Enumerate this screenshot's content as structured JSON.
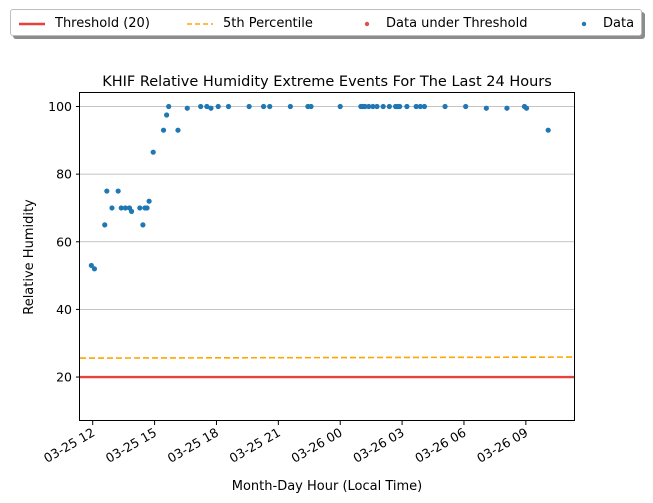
{
  "chart_data": {
    "type": "scatter",
    "title": "KHIF Relative Humidity Extreme Events For The Last 24 Hours",
    "xlabel": "Month-Day Hour (Local Time)",
    "ylabel": "Relative Humidity",
    "ylim": [
      7,
      104
    ],
    "xlim": [
      "03-25 11:23",
      "03-26 11:23"
    ],
    "grid": "y",
    "legend_placement": "top, outside",
    "x_ticks": [
      "03-25 12",
      "03-25 15",
      "03-25 18",
      "03-25 21",
      "03-26 00",
      "03-26 03",
      "03-26 06",
      "03-26 09"
    ],
    "x_tick_times": [
      "03-25 12:00",
      "03-25 15:00",
      "03-25 18:00",
      "03-25 21:00",
      "03-26 00:00",
      "03-26 03:00",
      "03-26 06:00",
      "03-26 09:00"
    ],
    "y_ticks": [
      20,
      40,
      60,
      80,
      100
    ],
    "threshold": {
      "label": "Threshold (20)",
      "value": 20,
      "color": "#e8403c"
    },
    "percentile": {
      "label": "5th Percentile",
      "start": 25.6,
      "end": 25.9,
      "color": "#ffa500"
    },
    "series": [
      {
        "name": "Data under Threshold",
        "color": "#d9544f",
        "points": []
      },
      {
        "name": "Data",
        "color": "#1f77b4",
        "points": [
          {
            "x": "03-25 11:56",
            "y": 53
          },
          {
            "x": "03-25 12:05",
            "y": 52
          },
          {
            "x": "03-25 12:35",
            "y": 65
          },
          {
            "x": "03-25 12:41",
            "y": 75
          },
          {
            "x": "03-25 12:56",
            "y": 70
          },
          {
            "x": "03-25 13:14",
            "y": 75
          },
          {
            "x": "03-25 13:23",
            "y": 70
          },
          {
            "x": "03-25 13:35",
            "y": 70
          },
          {
            "x": "03-25 13:47",
            "y": 70
          },
          {
            "x": "03-25 13:53",
            "y": 69
          },
          {
            "x": "03-25 14:17",
            "y": 70
          },
          {
            "x": "03-25 14:26",
            "y": 65
          },
          {
            "x": "03-25 14:32",
            "y": 70
          },
          {
            "x": "03-25 14:38",
            "y": 70
          },
          {
            "x": "03-25 14:44",
            "y": 72
          },
          {
            "x": "03-25 14:56",
            "y": 86.5
          },
          {
            "x": "03-25 15:26",
            "y": 93
          },
          {
            "x": "03-25 15:35",
            "y": 97.5
          },
          {
            "x": "03-25 15:41",
            "y": 100
          },
          {
            "x": "03-25 16:08",
            "y": 93
          },
          {
            "x": "03-25 16:35",
            "y": 99.5
          },
          {
            "x": "03-25 17:14",
            "y": 100
          },
          {
            "x": "03-25 17:32",
            "y": 100
          },
          {
            "x": "03-25 17:44",
            "y": 99.5
          },
          {
            "x": "03-25 18:05",
            "y": 100
          },
          {
            "x": "03-25 18:35",
            "y": 100
          },
          {
            "x": "03-25 19:35",
            "y": 100
          },
          {
            "x": "03-25 20:17",
            "y": 100
          },
          {
            "x": "03-25 20:35",
            "y": 100
          },
          {
            "x": "03-25 21:35",
            "y": 100
          },
          {
            "x": "03-25 22:26",
            "y": 100
          },
          {
            "x": "03-25 22:35",
            "y": 100
          },
          {
            "x": "03-26 00:00",
            "y": 100
          },
          {
            "x": "03-26 01:00",
            "y": 100
          },
          {
            "x": "03-26 01:06",
            "y": 100
          },
          {
            "x": "03-26 01:12",
            "y": 100
          },
          {
            "x": "03-26 01:23",
            "y": 100
          },
          {
            "x": "03-26 01:35",
            "y": 100
          },
          {
            "x": "03-26 01:47",
            "y": 100
          },
          {
            "x": "03-26 02:05",
            "y": 100
          },
          {
            "x": "03-26 02:23",
            "y": 100
          },
          {
            "x": "03-26 02:41",
            "y": 100
          },
          {
            "x": "03-26 02:47",
            "y": 100
          },
          {
            "x": "03-26 02:53",
            "y": 100
          },
          {
            "x": "03-26 03:14",
            "y": 100
          },
          {
            "x": "03-26 03:41",
            "y": 100
          },
          {
            "x": "03-26 03:53",
            "y": 100
          },
          {
            "x": "03-26 04:05",
            "y": 100
          },
          {
            "x": "03-26 05:05",
            "y": 100
          },
          {
            "x": "03-26 06:05",
            "y": 100
          },
          {
            "x": "03-26 07:05",
            "y": 99.5
          },
          {
            "x": "03-26 08:05",
            "y": 99.5
          },
          {
            "x": "03-26 08:56",
            "y": 100
          },
          {
            "x": "03-26 09:02",
            "y": 99.5
          },
          {
            "x": "03-26 10:05",
            "y": 93
          }
        ]
      }
    ]
  }
}
